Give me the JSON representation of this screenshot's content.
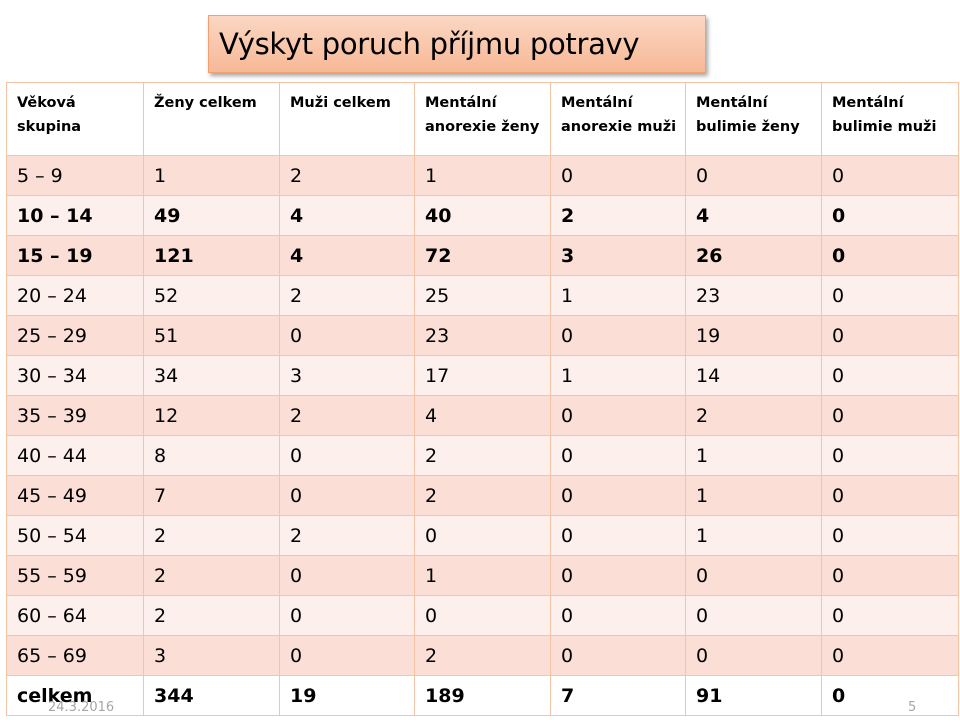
{
  "title": "Výskyt poruch příjmu potravy",
  "footer": {
    "date": "24.3.2016",
    "page": "5"
  },
  "table": {
    "headers": [
      "Věková skupina",
      "Ženy celkem",
      "Muži celkem",
      "Mentální anorexie ženy",
      "Mentální anorexie muži",
      "Mentální bulimie ženy",
      "Mentální bulimie muži"
    ],
    "rows": [
      {
        "bold": false,
        "cells": [
          "5 – 9",
          "1",
          "2",
          "1",
          "0",
          "0",
          "0"
        ]
      },
      {
        "bold": true,
        "cells": [
          "10 – 14",
          "49",
          "4",
          "40",
          "2",
          "4",
          "0"
        ]
      },
      {
        "bold": true,
        "cells": [
          "15 – 19",
          "121",
          "4",
          "72",
          "3",
          "26",
          "0"
        ]
      },
      {
        "bold": false,
        "cells": [
          "20 – 24",
          "52",
          "2",
          "25",
          "1",
          "23",
          "0"
        ]
      },
      {
        "bold": false,
        "cells": [
          "25 – 29",
          "51",
          "0",
          "23",
          "0",
          "19",
          "0"
        ]
      },
      {
        "bold": false,
        "cells": [
          "30 – 34",
          "34",
          "3",
          "17",
          "1",
          "14",
          "0"
        ]
      },
      {
        "bold": false,
        "cells": [
          "35 – 39",
          "12",
          "2",
          "4",
          "0",
          "2",
          "0"
        ]
      },
      {
        "bold": false,
        "cells": [
          "40 – 44",
          "8",
          "0",
          "2",
          "0",
          "1",
          "0"
        ]
      },
      {
        "bold": false,
        "cells": [
          "45 – 49",
          "7",
          "0",
          "2",
          "0",
          "1",
          "0"
        ]
      },
      {
        "bold": false,
        "cells": [
          "50 – 54",
          "2",
          "2",
          "0",
          "0",
          "1",
          "0"
        ]
      },
      {
        "bold": false,
        "cells": [
          "55 – 59",
          "2",
          "0",
          "1",
          "0",
          "0",
          "0"
        ]
      },
      {
        "bold": false,
        "cells": [
          "60 – 64",
          "2",
          "0",
          "0",
          "0",
          "0",
          "0"
        ]
      },
      {
        "bold": false,
        "cells": [
          "65 – 69",
          "3",
          "0",
          "2",
          "0",
          "0",
          "0"
        ]
      }
    ],
    "total": {
      "cells": [
        "celkem",
        "344",
        "19",
        "189",
        "7",
        "91",
        "0"
      ]
    }
  },
  "colors": {
    "title_fill": "#f7b896",
    "row_dark": "#fbdfd6",
    "row_light": "#fdf0ec",
    "grid_line": "#f6c3a6",
    "footer_text": "#a6a6a6"
  }
}
